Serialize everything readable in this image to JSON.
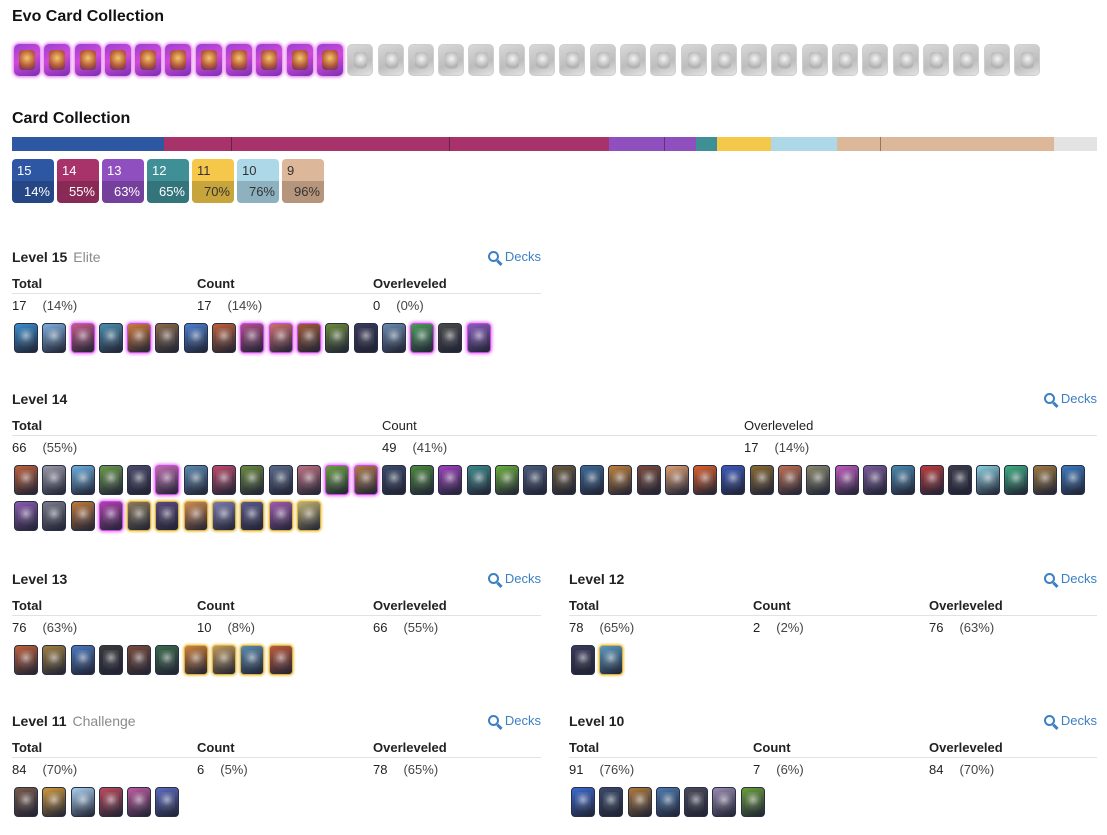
{
  "evo_collection": {
    "title": "Evo Card Collection",
    "cards": [
      {
        "unlocked": true
      },
      {
        "unlocked": true
      },
      {
        "unlocked": true
      },
      {
        "unlocked": true
      },
      {
        "unlocked": true
      },
      {
        "unlocked": true
      },
      {
        "unlocked": true
      },
      {
        "unlocked": true
      },
      {
        "unlocked": true
      },
      {
        "unlocked": true
      },
      {
        "unlocked": true
      },
      {
        "unlocked": false
      },
      {
        "unlocked": false
      },
      {
        "unlocked": false
      },
      {
        "unlocked": false
      },
      {
        "unlocked": false
      },
      {
        "unlocked": false
      },
      {
        "unlocked": false
      },
      {
        "unlocked": false
      },
      {
        "unlocked": false
      },
      {
        "unlocked": false
      },
      {
        "unlocked": false
      },
      {
        "unlocked": false
      },
      {
        "unlocked": false
      },
      {
        "unlocked": false
      },
      {
        "unlocked": false
      },
      {
        "unlocked": false
      },
      {
        "unlocked": false
      },
      {
        "unlocked": false
      },
      {
        "unlocked": false
      },
      {
        "unlocked": false
      },
      {
        "unlocked": false
      },
      {
        "unlocked": false
      },
      {
        "unlocked": false
      }
    ]
  },
  "card_collection": {
    "title": "Card Collection",
    "bar_segments": [
      {
        "level": "15",
        "share": 0.14,
        "color": "#2e57a3",
        "dividers": []
      },
      {
        "level": "14",
        "share": 0.41,
        "color": "#a8326a",
        "dividers": [
          0.15,
          0.64
        ]
      },
      {
        "level": "13",
        "share": 0.08,
        "color": "#8f4fbf",
        "dividers": [
          0.64
        ]
      },
      {
        "level": "12",
        "share": 0.02,
        "color": "#3f8f96",
        "dividers": []
      },
      {
        "level": "11",
        "share": 0.05,
        "color": "#f5c84b",
        "dividers": []
      },
      {
        "level": "10",
        "share": 0.06,
        "color": "#add8e8",
        "dividers": []
      },
      {
        "level": "9",
        "share": 0.2,
        "color": "#ddb799",
        "dividers": [
          0.2
        ]
      },
      {
        "level": "rest",
        "share": 0.04,
        "color": "#e3e3e3",
        "dividers": []
      }
    ],
    "legend": [
      {
        "level": "15",
        "pct": "14%",
        "color": "#2e57a3",
        "text_color": "#ffffff"
      },
      {
        "level": "14",
        "pct": "55%",
        "color": "#a8326a",
        "text_color": "#ffffff"
      },
      {
        "level": "13",
        "pct": "63%",
        "color": "#8f4fbf",
        "text_color": "#ffffff"
      },
      {
        "level": "12",
        "pct": "65%",
        "color": "#3f8f96",
        "text_color": "#ffffff"
      },
      {
        "level": "11",
        "pct": "70%",
        "color": "#f5c84b",
        "text_color": "#333333"
      },
      {
        "level": "10",
        "pct": "76%",
        "color": "#add8e8",
        "text_color": "#333333"
      },
      {
        "level": "9",
        "pct": "96%",
        "color": "#ddb799",
        "text_color": "#333333"
      }
    ]
  },
  "sections": [
    {
      "title": "Level 15",
      "subtitle": "Elite",
      "decks_label": "Decks",
      "headers": [
        "Total",
        "Count",
        "Overleveled"
      ],
      "values": [
        [
          "17",
          "(14%)"
        ],
        [
          "17",
          "(14%)"
        ],
        [
          "0",
          "(0%)"
        ]
      ],
      "cards": [
        "#3a8fd0",
        "#7fb0e0",
        "#c65a8a",
        "#4a8fb0",
        "#d07a3a",
        "#8a6a4a",
        "#4a7fd0",
        "#c0603a",
        "#b0508a",
        "#d07070",
        "#a05a3a",
        "#6a8a3a",
        "#3a3a5a",
        "#6a8ab0",
        "#4a9a5a",
        "#4a4a4a",
        "#8a5ac0"
      ],
      "styles": [
        "n",
        "n",
        "evo",
        "n",
        "evo",
        "n",
        "n",
        "n",
        "evo",
        "evo",
        "evo",
        "n",
        "n",
        "n",
        "evo",
        "n",
        "evo"
      ]
    },
    {
      "title": "Level 14",
      "subtitle": "",
      "decks_label": "Decks",
      "headers": [
        "Total",
        "Count",
        "Overleveled"
      ],
      "values": [
        [
          "66",
          "(55%)"
        ],
        [
          "49",
          "(41%)"
        ],
        [
          "17",
          "(14%)"
        ]
      ],
      "cards": [
        "#c0603a",
        "#9a9aa8",
        "#6ab0e0",
        "#6a9a4a",
        "#4a4a6a",
        "#c06ab0",
        "#5a8ab0",
        "#c04a6a",
        "#6a8a3a",
        "#5a6a8a",
        "#c07080",
        "#6aa040",
        "#b07a4a",
        "#3a4a6a",
        "#4a8a3a",
        "#a040c0",
        "#3a8a8a",
        "#6ab03a",
        "#4a5a7a",
        "#6a5a3a",
        "#3a6a9a",
        "#c0803a",
        "#7a4a3a",
        "#e0a070",
        "#e0602a",
        "#3a5ac0",
        "#8a6a30",
        "#c07050",
        "#8a8a6a",
        "#c05ac0",
        "#7a5a9a",
        "#4a8ab0",
        "#c03a3a",
        "#3a3a4a",
        "#8ad0e0",
        "#3ab080",
        "#a07a40",
        "#3a7ac0",
        "#8a5ab0",
        "#7a7a8a",
        "#c07a3a",
        "#b040b0",
        "#8a7a5a",
        "#5a4a7a",
        "#d08a50",
        "#7a7ab0",
        "#5a5a8a",
        "#a05ab0",
        "#c0b070"
      ],
      "styles": [
        "n",
        "n",
        "n",
        "n",
        "n",
        "evo",
        "n",
        "n",
        "n",
        "n",
        "n",
        "evo",
        "evo",
        "n",
        "n",
        "n",
        "n",
        "n",
        "n",
        "n",
        "n",
        "n",
        "n",
        "n",
        "n",
        "n",
        "n",
        "n",
        "n",
        "n",
        "n",
        "n",
        "n",
        "n",
        "n",
        "n",
        "n",
        "n",
        "n",
        "n",
        "n",
        "evo",
        "champ",
        "champ",
        "champ",
        "champ",
        "champ",
        "champ",
        "champ"
      ]
    },
    {
      "title": "Level 13",
      "subtitle": "",
      "decks_label": "Decks",
      "headers": [
        "Total",
        "Count",
        "Overleveled"
      ],
      "values": [
        [
          "76",
          "(63%)"
        ],
        [
          "10",
          "(8%)"
        ],
        [
          "66",
          "(55%)"
        ]
      ],
      "cards": [
        "#c0603a",
        "#a08040",
        "#4a7ac0",
        "#3a3a3a",
        "#7a4a3a",
        "#3a6a4a",
        "#d0803a",
        "#c09a5a",
        "#5a8ab0",
        "#c05a3a"
      ],
      "styles": [
        "n",
        "n",
        "n",
        "n",
        "n",
        "n",
        "champ",
        "champ",
        "champ",
        "champ"
      ]
    },
    {
      "title": "Level 12",
      "subtitle": "",
      "decks_label": "Decks",
      "headers": [
        "Total",
        "Count",
        "Overleveled"
      ],
      "values": [
        [
          "78",
          "(65%)"
        ],
        [
          "2",
          "(2%)"
        ],
        [
          "76",
          "(63%)"
        ]
      ],
      "cards": [
        "#3a3a5a",
        "#5a9ac0"
      ],
      "styles": [
        "n",
        "champ"
      ]
    },
    {
      "title": "Level 11",
      "subtitle": "Challenge",
      "decks_label": "Decks",
      "headers": [
        "Total",
        "Count",
        "Overleveled"
      ],
      "values": [
        [
          "84",
          "(70%)"
        ],
        [
          "6",
          "(5%)"
        ],
        [
          "78",
          "(65%)"
        ]
      ],
      "cards": [
        "#7a5a4a",
        "#d09a3a",
        "#aad0f0",
        "#c04a5a",
        "#c05aa0",
        "#5a6ac0"
      ],
      "styles": [
        "n",
        "n",
        "n",
        "n",
        "n",
        "n"
      ]
    },
    {
      "title": "Level 10",
      "subtitle": "",
      "decks_label": "Decks",
      "headers": [
        "Total",
        "Count",
        "Overleveled"
      ],
      "values": [
        [
          "91",
          "(76%)"
        ],
        [
          "7",
          "(6%)"
        ],
        [
          "84",
          "(70%)"
        ]
      ],
      "cards": [
        "#3a6ad0",
        "#3a4a6a",
        "#b07a3a",
        "#4a7ab0",
        "#4a4a5a",
        "#9a8ab0",
        "#6aa03a"
      ],
      "styles": [
        "n",
        "n",
        "n",
        "n",
        "n",
        "n",
        "n"
      ]
    }
  ]
}
